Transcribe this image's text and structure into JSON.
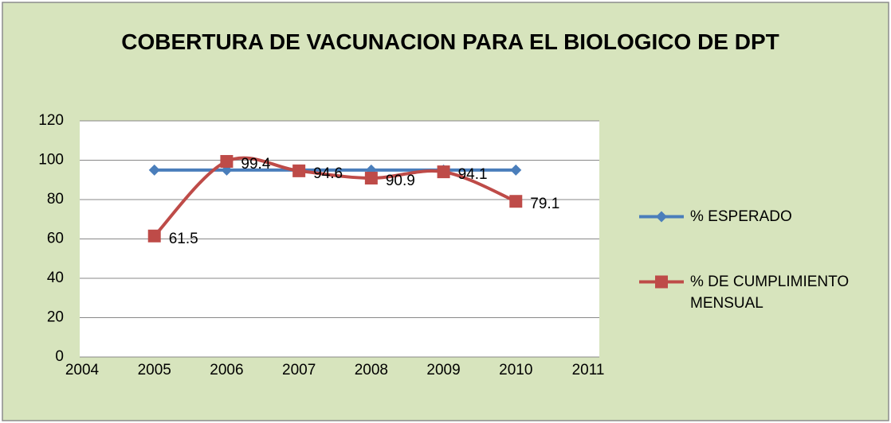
{
  "chart_data": {
    "type": "line",
    "title": "COBERTURA DE VACUNACION PARA EL BIOLOGICO DE DPT",
    "x": [
      2005,
      2006,
      2007,
      2008,
      2009,
      2010
    ],
    "series": [
      {
        "name": "% ESPERADO",
        "color": "#4a7ebb",
        "marker": "diamond",
        "smooth": false,
        "data_labels": false,
        "values": [
          95,
          95,
          95,
          95,
          95,
          95
        ]
      },
      {
        "name": "% DE CUMPLIMIENTO MENSUAL",
        "color": "#be4b48",
        "marker": "square",
        "smooth": true,
        "data_labels": true,
        "values": [
          61.5,
          99.4,
          94.6,
          90.9,
          94.1,
          79.1
        ]
      }
    ],
    "xlim": [
      2004,
      2011
    ],
    "xticks": [
      2004,
      2005,
      2006,
      2007,
      2008,
      2009,
      2010,
      2011
    ],
    "ylim": [
      0,
      120
    ],
    "yticks": [
      0,
      20,
      40,
      60,
      80,
      100,
      120
    ],
    "grid": true,
    "legend": "right"
  }
}
